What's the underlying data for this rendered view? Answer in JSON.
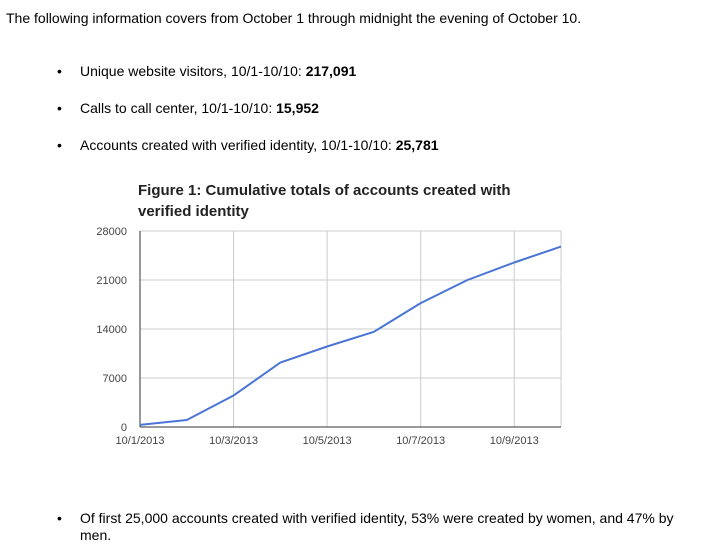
{
  "intro": "The following information covers from October 1 through midnight the evening of October 10.",
  "stats": [
    {
      "label": "Unique website visitors, 10/1-10/10: ",
      "value": "217,091"
    },
    {
      "label": "Calls to call center, 10/1-10/10: ",
      "value": "15,952"
    },
    {
      "label": "Accounts created with verified identity, 10/1-10/10: ",
      "value": "25,781"
    }
  ],
  "bullet_glyph": "•",
  "chart_data": {
    "type": "line",
    "title": "Figure 1: Cumulative totals of accounts created with verified identity",
    "xlabel": "",
    "ylabel": "",
    "x": [
      "10/1/2013",
      "10/2/2013",
      "10/3/2013",
      "10/4/2013",
      "10/5/2013",
      "10/6/2013",
      "10/7/2013",
      "10/8/2013",
      "10/9/2013",
      "10/10/2013"
    ],
    "x_tick_labels": [
      "10/1/2013",
      "10/3/2013",
      "10/5/2013",
      "10/7/2013",
      "10/9/2013"
    ],
    "y_ticks": [
      0,
      7000,
      14000,
      21000,
      28000
    ],
    "ylim": [
      0,
      28000
    ],
    "grid": true,
    "series": [
      {
        "values": [
          300,
          1000,
          4500,
          9200,
          11500,
          13600,
          17700,
          21000,
          23500,
          25781
        ],
        "color": "#4a75d6"
      }
    ]
  },
  "footer": "Of first 25,000 accounts created with verified identity, 53% were created by women, and 47% by men."
}
